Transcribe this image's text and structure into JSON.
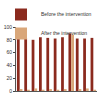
{
  "chart_data": {
    "type": "bar",
    "categories": [
      null,
      null,
      null,
      null,
      null,
      null,
      null,
      null,
      null,
      null,
      null
    ],
    "series": [
      {
        "name": "Before the intervention",
        "color": "#8b2a1e",
        "values": [
          82,
          83,
          80,
          84,
          83,
          82,
          84,
          90,
          82,
          82,
          83
        ]
      },
      {
        "name": "After the intervention",
        "color": "#d9a77a",
        "values": [
          3,
          2,
          4,
          2,
          3,
          2,
          3,
          88,
          3,
          4,
          2
        ]
      }
    ],
    "ylim": [
      0,
      100
    ],
    "yticks": [
      0,
      20,
      40,
      60,
      80,
      100
    ],
    "grid": false,
    "legend": "top-right",
    "tick_labels": "y"
  }
}
